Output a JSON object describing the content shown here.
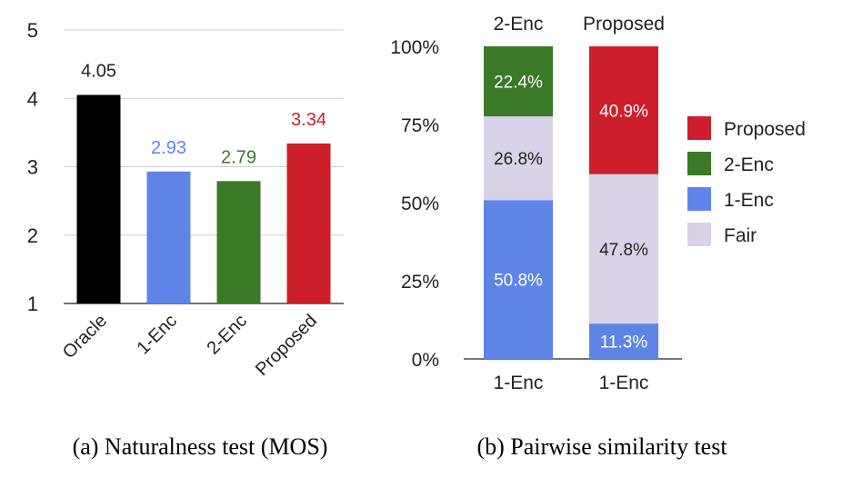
{
  "chart_data": [
    {
      "type": "bar",
      "title": "",
      "caption": "(a) Naturalness test (MOS)",
      "categories": [
        "Oracle",
        "1-Enc",
        "2-Enc",
        "Proposed"
      ],
      "values": [
        4.05,
        2.93,
        2.79,
        3.34
      ],
      "value_labels": [
        "4.05",
        "2.93",
        "2.79",
        "3.34"
      ],
      "bar_colors": [
        "#000000",
        "#5f84e8",
        "#3a7a26",
        "#cc1f2b"
      ],
      "label_colors": [
        "#222222",
        "#5f84e8",
        "#3a7a26",
        "#cc1f2b"
      ],
      "ylim": [
        1,
        5
      ],
      "yticks": [
        1,
        2,
        3,
        4,
        5
      ],
      "ytick_labels": [
        "1",
        "2",
        "3",
        "4",
        "5"
      ],
      "grid": true,
      "xlabel": "",
      "ylabel": ""
    },
    {
      "type": "bar",
      "stacked": true,
      "title": "",
      "caption": "(b) Pairwise similarity test",
      "categories": [
        "1-Enc",
        "1-Enc"
      ],
      "top_labels": [
        "2-Enc",
        "Proposed"
      ],
      "series": [
        {
          "name": "1-Enc",
          "color": "#5f84e8",
          "values": [
            50.8,
            11.3
          ],
          "labels": [
            "50.8%",
            "11.3%"
          ],
          "text_color": "#ffffff"
        },
        {
          "name": "Fair",
          "color": "#d9d2e9",
          "values": [
            26.8,
            47.8
          ],
          "labels": [
            "26.8%",
            "47.8%"
          ],
          "text_color": "#222222"
        },
        {
          "name": "2-Enc",
          "color": "#3a7a26",
          "values": [
            22.4,
            0
          ],
          "labels": [
            "22.4%",
            ""
          ],
          "text_color": "#ffffff"
        },
        {
          "name": "Proposed",
          "color": "#cc1f2b",
          "values": [
            0,
            40.9
          ],
          "labels": [
            "",
            "40.9%"
          ],
          "text_color": "#ffffff"
        }
      ],
      "legend": {
        "position": "right",
        "order": [
          "Proposed",
          "2-Enc",
          "1-Enc",
          "Fair"
        ]
      },
      "ylim": [
        0,
        100
      ],
      "yticks": [
        0,
        25,
        50,
        75,
        100
      ],
      "ytick_labels": [
        "0%",
        "25%",
        "50%",
        "75%",
        "100%"
      ],
      "grid": false,
      "xlabel": "",
      "ylabel": ""
    }
  ]
}
